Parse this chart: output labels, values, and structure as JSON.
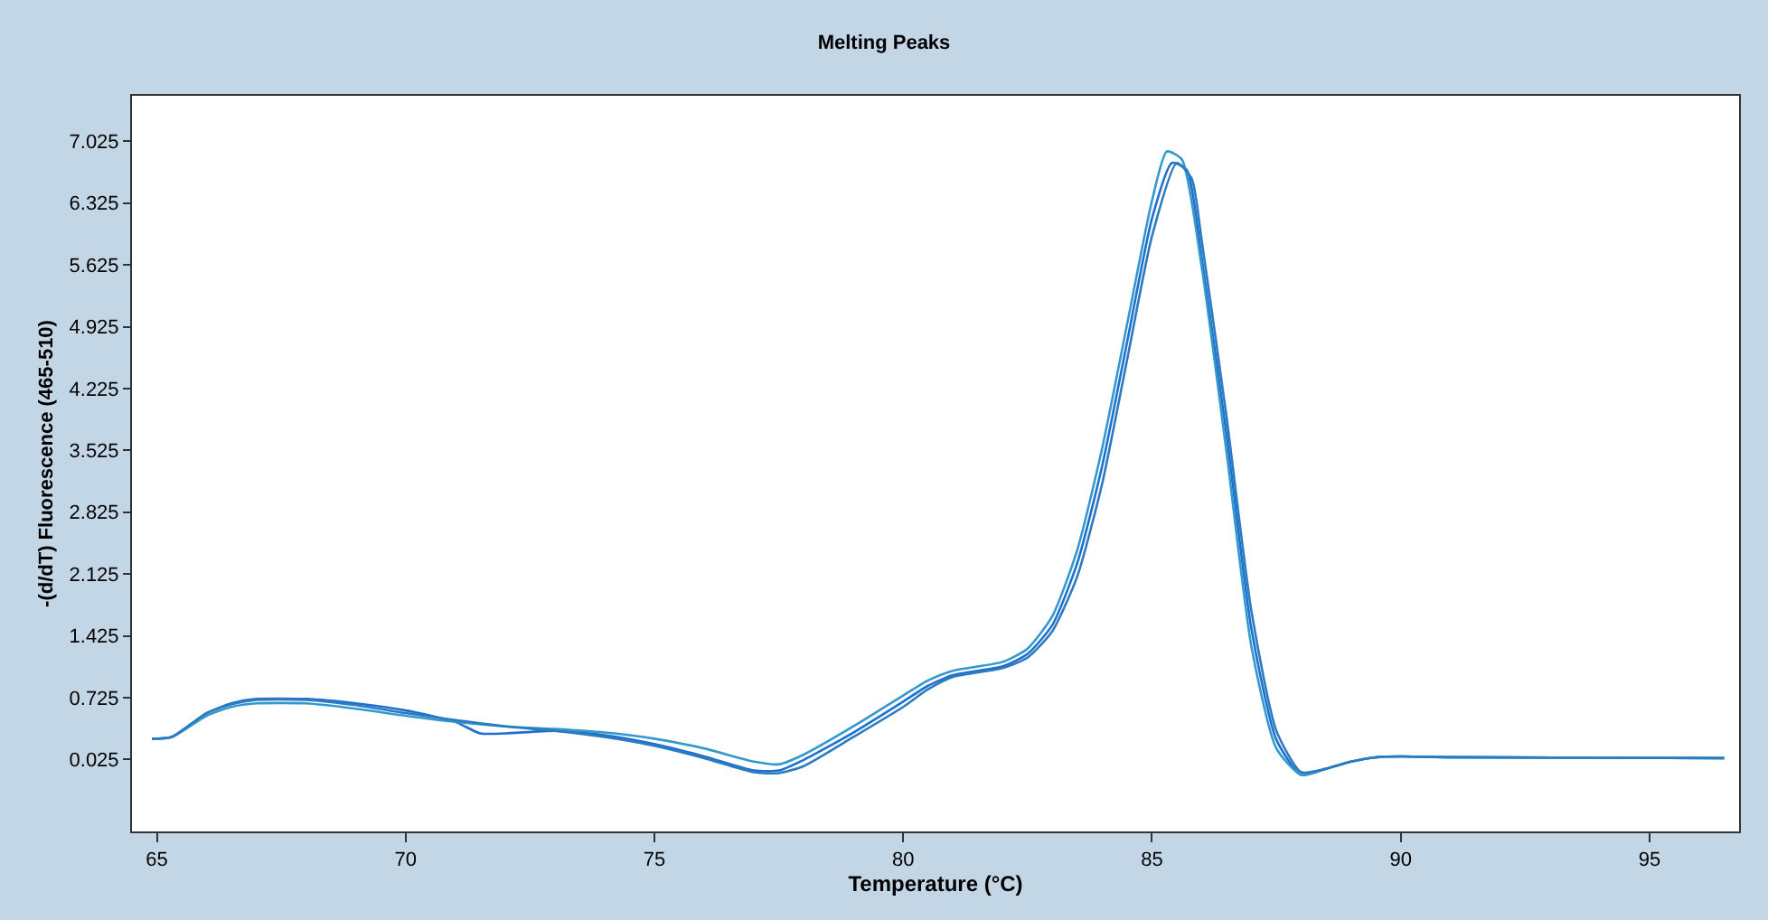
{
  "chart_data": {
    "type": "line",
    "title": "Melting Peaks",
    "xlabel": "Temperature (°C)",
    "ylabel": "-(d/dT) Fluorescence (465-510)",
    "xlim": [
      64.5,
      96.8
    ],
    "xticks": [
      65,
      70,
      75,
      80,
      85,
      90,
      95
    ],
    "ylim": [
      -0.79,
      7.54
    ],
    "yticks": [
      0.025,
      0.725,
      1.425,
      2.125,
      2.825,
      3.525,
      4.225,
      4.925,
      5.625,
      6.325,
      7.025
    ],
    "grid": false,
    "marker": "none",
    "line_style": "solid",
    "series": [
      {
        "color": "#1e6fd0",
        "x": [
          64.9,
          65.3,
          66,
          66.5,
          67,
          68,
          69,
          70,
          71,
          71.5,
          72,
          73,
          74,
          75,
          76,
          77,
          77.5,
          78,
          79,
          80,
          80.5,
          81,
          82,
          82.5,
          83,
          83.5,
          84,
          84.5,
          85,
          85.4,
          85.7,
          86,
          86.5,
          87,
          87.5,
          88,
          88.5,
          89,
          89.5,
          90,
          91,
          96.5
        ],
        "values": [
          0.26,
          0.28,
          0.55,
          0.66,
          0.71,
          0.71,
          0.66,
          0.58,
          0.45,
          0.32,
          0.32,
          0.35,
          0.3,
          0.2,
          0.06,
          -0.1,
          -0.1,
          0.02,
          0.33,
          0.68,
          0.86,
          0.98,
          1.08,
          1.22,
          1.55,
          2.25,
          3.35,
          4.75,
          6.15,
          6.78,
          6.7,
          5.7,
          3.7,
          1.5,
          0.25,
          -0.15,
          -0.08,
          0.0,
          0.05,
          0.06,
          0.05,
          0.04
        ]
      },
      {
        "color": "#3399cc",
        "x": [
          64.9,
          65.3,
          66,
          66.5,
          67,
          68,
          69,
          70,
          71,
          72,
          73,
          74,
          75,
          76,
          77,
          77.5,
          78,
          79,
          80,
          80.5,
          81,
          82,
          82.5,
          83,
          83.5,
          84,
          84.5,
          85,
          85.3,
          85.6,
          86,
          86.5,
          87,
          87.5,
          88,
          88.5,
          89,
          89.5,
          90,
          91,
          96.5
        ],
        "values": [
          0.26,
          0.28,
          0.52,
          0.62,
          0.66,
          0.66,
          0.6,
          0.52,
          0.45,
          0.4,
          0.37,
          0.33,
          0.26,
          0.15,
          0.0,
          -0.03,
          0.08,
          0.4,
          0.75,
          0.92,
          1.03,
          1.13,
          1.28,
          1.65,
          2.4,
          3.55,
          4.95,
          6.35,
          6.91,
          6.82,
          5.6,
          3.5,
          1.3,
          0.15,
          -0.15,
          -0.08,
          0.0,
          0.05,
          0.06,
          0.05,
          0.04
        ]
      },
      {
        "color": "#2b7bbf",
        "x": [
          64.9,
          65.3,
          66,
          66.5,
          67,
          68,
          69,
          70,
          71,
          72,
          73,
          74,
          75,
          76,
          77,
          77.5,
          78,
          79,
          80,
          80.5,
          81,
          82,
          82.5,
          83,
          83.5,
          84,
          84.5,
          85,
          85.5,
          85.8,
          86,
          86.5,
          87,
          87.5,
          88,
          88.5,
          89,
          89.5,
          90,
          91,
          96.5
        ],
        "values": [
          0.26,
          0.28,
          0.55,
          0.65,
          0.7,
          0.7,
          0.64,
          0.55,
          0.47,
          0.4,
          0.35,
          0.28,
          0.18,
          0.04,
          -0.12,
          -0.13,
          -0.05,
          0.28,
          0.62,
          0.82,
          0.96,
          1.06,
          1.18,
          1.48,
          2.1,
          3.15,
          4.55,
          5.95,
          6.78,
          6.6,
          5.9,
          3.9,
          1.7,
          0.35,
          -0.12,
          -0.08,
          0.0,
          0.05,
          0.06,
          0.05,
          0.04
        ]
      }
    ]
  }
}
